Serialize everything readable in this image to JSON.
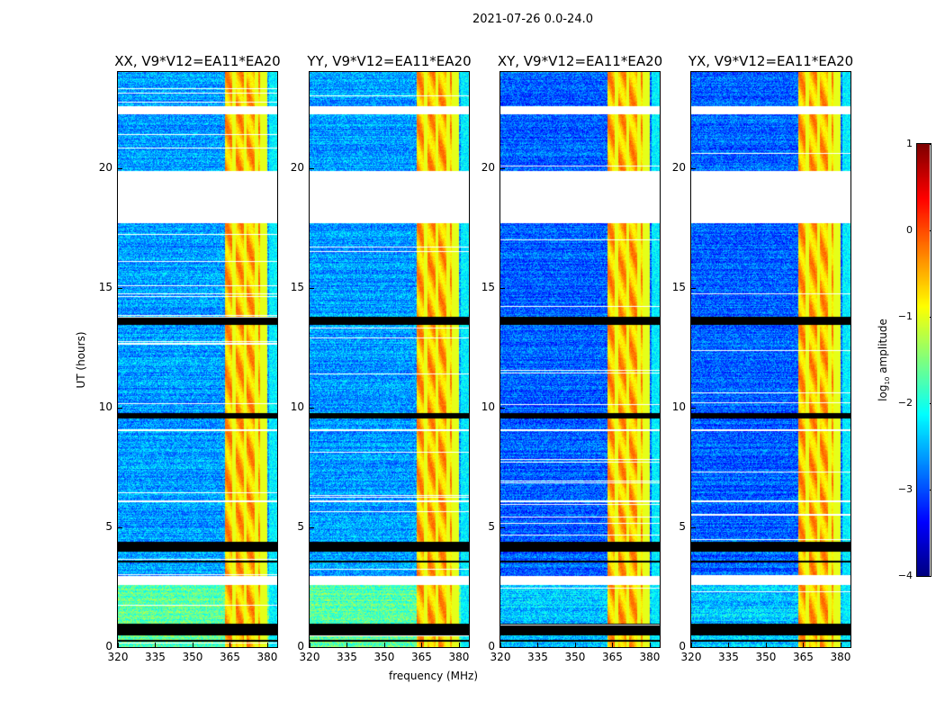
{
  "suptitle": "2021-07-26 0.0-24.0",
  "chart_data": {
    "type": "heatmap",
    "panels": [
      {
        "title": "XX, V9*V12=EA11*EA20",
        "pol": "XX"
      },
      {
        "title": "YY, V9*V12=EA11*EA20",
        "pol": "YY"
      },
      {
        "title": "XY, V9*V12=EA11*EA20",
        "pol": "XY"
      },
      {
        "title": "YX, V9*V12=EA11*EA20",
        "pol": "YX"
      }
    ],
    "xlabel": "frequency (MHz)",
    "ylabel": "UT (hours)",
    "xlim": [
      320,
      384
    ],
    "ylim": [
      0,
      24
    ],
    "xticks": [
      "320",
      "335",
      "350",
      "365",
      "380"
    ],
    "xtick_values": [
      320,
      335,
      350,
      365,
      380
    ],
    "yticks": [
      "0",
      "5",
      "10",
      "15",
      "20"
    ],
    "ytick_values": [
      0,
      5,
      10,
      15,
      20
    ],
    "colorbar": {
      "label": "log10 amplitude",
      "label_main": "log",
      "label_sub": "10",
      "label_rest": " amplitude",
      "range": [
        -4,
        1
      ],
      "ticks": [
        "1",
        "0",
        "−1",
        "−2",
        "−3",
        "−4"
      ],
      "tick_values": [
        1,
        0,
        -1,
        -2,
        -3,
        -4
      ],
      "colormap": "jet"
    },
    "rfi_band_mhz": [
      363,
      380
    ],
    "background_log_amp": {
      "parallel": -2.6,
      "cross": -2.9
    },
    "low_time_level": {
      "hours": [
        0,
        2.6
      ],
      "parallel": -1.7,
      "cross": -2.4
    },
    "no_data_hours": [
      [
        22.25,
        22.6
      ],
      [
        17.7,
        19.9
      ],
      [
        2.6,
        3.0
      ],
      [
        6.05,
        6.15
      ],
      [
        9.05,
        9.12
      ]
    ],
    "flagged_zero_hours": [
      [
        13.45,
        13.8
      ],
      [
        9.55,
        9.8
      ],
      [
        4.0,
        4.4
      ],
      [
        0.5,
        1.0
      ],
      [
        0.25,
        0.32
      ],
      [
        3.55,
        3.62
      ]
    ]
  }
}
